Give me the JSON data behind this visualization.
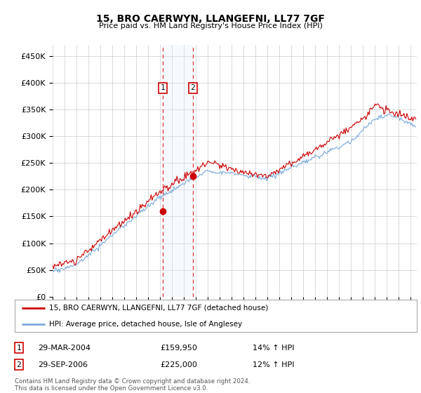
{
  "title": "15, BRO CAERWYN, LLANGEFNI, LL77 7GF",
  "subtitle": "Price paid vs. HM Land Registry's House Price Index (HPI)",
  "ylabel_ticks": [
    "£0",
    "£50K",
    "£100K",
    "£150K",
    "£200K",
    "£250K",
    "£300K",
    "£350K",
    "£400K",
    "£450K"
  ],
  "ytick_values": [
    0,
    50000,
    100000,
    150000,
    200000,
    250000,
    300000,
    350000,
    400000,
    450000
  ],
  "ylim": [
    0,
    470000
  ],
  "xlim_start": 1995.0,
  "xlim_end": 2025.5,
  "transaction1_x": 2004.24,
  "transaction1_y": 159950,
  "transaction2_x": 2006.75,
  "transaction2_y": 225000,
  "transaction1_date": "29-MAR-2004",
  "transaction1_price": "£159,950",
  "transaction1_hpi": "14% ↑ HPI",
  "transaction2_date": "29-SEP-2006",
  "transaction2_price": "£225,000",
  "transaction2_hpi": "12% ↑ HPI",
  "line1_color": "#cc0000",
  "line2_color": "#7aaadd",
  "shade_color": "#ddeeff",
  "legend_line1": "15, BRO CAERWYN, LLANGEFNI, LL77 7GF (detached house)",
  "legend_line2": "HPI: Average price, detached house, Isle of Anglesey",
  "footer": "Contains HM Land Registry data © Crown copyright and database right 2024.\nThis data is licensed under the Open Government Licence v3.0.",
  "background_color": "#ffffff",
  "grid_color": "#cccccc"
}
